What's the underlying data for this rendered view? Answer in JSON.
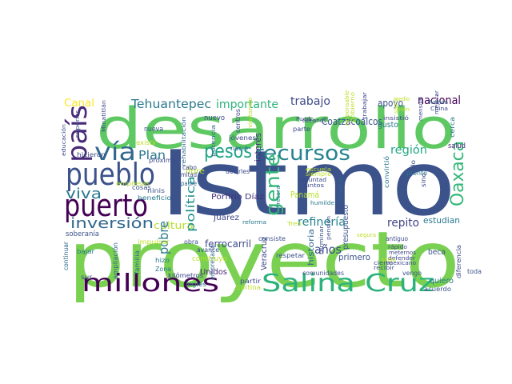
{
  "wordcloud": {
    "words": [
      {
        "text": "Istmo",
        "color": "#3b528b"
      },
      {
        "text": "proyecto",
        "color": "#7ad151"
      },
      {
        "text": "desarrollo",
        "color": "#5ec962"
      },
      {
        "text": "pueblo",
        "color": "#3b528b"
      },
      {
        "text": "puerto",
        "color": "#440154"
      },
      {
        "text": "Salina Cruz",
        "color": "#2db27d"
      },
      {
        "text": "millones",
        "color": "#440154"
      },
      {
        "text": "país",
        "color": "#482878"
      },
      {
        "text": "vía",
        "color": "#31688e"
      },
      {
        "text": "pesos",
        "color": "#20a486"
      },
      {
        "text": "recursos",
        "color": "#25848e"
      },
      {
        "text": "gente",
        "color": "#35b779"
      },
      {
        "text": "Oaxaca",
        "color": "#35b779"
      },
      {
        "text": "inversión",
        "color": "#31688e"
      },
      {
        "text": "viva",
        "color": "#2a788e"
      },
      {
        "text": "Tehuantepec",
        "color": "#2a788e"
      },
      {
        "text": "importante",
        "color": "#2db27d"
      },
      {
        "text": "trabajo",
        "color": "#3e4989"
      },
      {
        "text": "nacional",
        "color": "#440154"
      },
      {
        "text": "Canal",
        "color": "#fde725"
      },
      {
        "text": "Plan",
        "color": "#2a788e"
      },
      {
        "text": "región",
        "color": "#22a884"
      },
      {
        "text": "Coatzacoalcos",
        "color": "#3b528b"
      },
      {
        "text": "años",
        "color": "#3e4989"
      },
      {
        "text": "refinería",
        "color": "#26828e"
      },
      {
        "text": "repito",
        "color": "#414487"
      },
      {
        "text": "cultura",
        "color": "#b5de2b"
      },
      {
        "text": "pobre",
        "color": "#2a788e"
      },
      {
        "text": "política",
        "color": "#21918c"
      },
      {
        "text": "ferrocarril",
        "color": "#3e4989"
      },
      {
        "text": "estudian",
        "color": "#2a788e"
      },
      {
        "text": "apoyo",
        "color": "#3b528b"
      },
      {
        "text": "Porfirio Díaz",
        "color": "#46327e"
      },
      {
        "text": "interés",
        "color": "#472d7b"
      },
      {
        "text": "presupuesto",
        "color": "#3b528b"
      },
      {
        "text": "Panamá",
        "color": "#b5de2b"
      },
      {
        "text": "Juárez",
        "color": "#3e4989"
      },
      {
        "text": "primero",
        "color": "#3b528b"
      },
      {
        "text": "beca",
        "color": "#3b528b"
      },
      {
        "text": "quiero",
        "color": "#2a788e"
      },
      {
        "text": "Veracruz",
        "color": "#3e4989"
      },
      {
        "text": "Unidos",
        "color": "#482878"
      },
      {
        "text": "nuevo",
        "color": "#3e4989"
      },
      {
        "text": "nueva",
        "color": "#3b528b"
      },
      {
        "text": "gusto",
        "color": "#2a788e"
      },
      {
        "text": "salud",
        "color": "#482878"
      },
      {
        "text": "historia",
        "color": "#31688e"
      },
      {
        "text": "soberanía",
        "color": "#3b528b"
      },
      {
        "text": "libre",
        "color": "#b5de2b"
      },
      {
        "text": "cabo",
        "color": "#3e4989"
      },
      {
        "text": "mitad",
        "color": "#3e4989"
      },
      {
        "text": "padre",
        "color": "#31688e"
      },
      {
        "text": "consiste",
        "color": "#3b528b"
      },
      {
        "text": "decirles",
        "color": "#3e4989"
      },
      {
        "text": "empresario",
        "color": "#31688e"
      },
      {
        "text": "obra",
        "color": "#3b528b"
      },
      {
        "text": "avance",
        "color": "#3b528b"
      },
      {
        "text": "ampliación",
        "color": "#31688e"
      },
      {
        "text": "familia",
        "color": "#31688e"
      },
      {
        "text": "construyo",
        "color": "#b5de2b"
      },
      {
        "text": "kilómetros",
        "color": "#3e4989"
      },
      {
        "text": "inglés",
        "color": "#2a788e"
      },
      {
        "text": "cortina",
        "color": "#bddf26"
      },
      {
        "text": "partir",
        "color": "#3e4989"
      },
      {
        "text": "respetar",
        "color": "#3b528b"
      },
      {
        "text": "comunidades",
        "color": "#3b528b"
      },
      {
        "text": "vengo",
        "color": "#3b528b"
      },
      {
        "text": "acuerdo",
        "color": "#3b528b"
      },
      {
        "text": "toda",
        "color": "#3b528b"
      },
      {
        "text": "cerca",
        "color": "#2a788e"
      },
      {
        "text": "diferencia",
        "color": "#3e4989"
      },
      {
        "text": "continuar",
        "color": "#31688e"
      },
      {
        "text": "bajar",
        "color": "#2a788e"
      },
      {
        "text": "sur",
        "color": "#3e4989"
      },
      {
        "text": "Zona",
        "color": "#2a788e"
      },
      {
        "text": "hizo",
        "color": "#2a788e"
      },
      {
        "text": "impulsar",
        "color": "#bddf26"
      },
      {
        "text": "ninis",
        "color": "#3b528b"
      },
      {
        "text": "beneficio",
        "color": "#2a788e"
      },
      {
        "text": "cosas",
        "color": "#3b528b"
      },
      {
        "text": "empresas",
        "color": "#b5de2b"
      },
      {
        "text": "jóvenes",
        "color": "#3e4989"
      },
      {
        "text": "nació",
        "color": "#31688e"
      },
      {
        "text": "centros",
        "color": "#3e4989"
      },
      {
        "text": "parte",
        "color": "#3e4989"
      },
      {
        "text": "Puedo",
        "color": "#3e4989"
      },
      {
        "text": "hicieron",
        "color": "#3e4989"
      },
      {
        "text": "próximo",
        "color": "#3e4989"
      },
      {
        "text": "Minatitlán",
        "color": "#3e4989"
      },
      {
        "text": "rehabilitación",
        "color": "#31688e"
      },
      {
        "text": "potencia",
        "color": "#31688e"
      },
      {
        "text": "existir",
        "color": "#bddf26"
      },
      {
        "text": "reforma",
        "color": "#2a788e"
      },
      {
        "text": "siempre",
        "color": "#bddf26"
      },
      {
        "text": "voluntad",
        "color": "#3e4989"
      },
      {
        "text": "juntos",
        "color": "#3e4989"
      },
      {
        "text": "humilde",
        "color": "#2a788e"
      },
      {
        "text": "carretera",
        "color": "#2a788e"
      },
      {
        "text": "comercial",
        "color": "#31688e"
      },
      {
        "text": "escuela",
        "color": "#bddf26"
      },
      {
        "text": "convirtió",
        "color": "#2a788e"
      },
      {
        "text": "pronto",
        "color": "#2a788e"
      },
      {
        "text": "sólo",
        "color": "#3b528b"
      },
      {
        "text": "sino",
        "color": "#3e4989"
      },
      {
        "text": "pensión",
        "color": "#3b528b"
      },
      {
        "text": "terminar",
        "color": "#3b528b"
      },
      {
        "text": "cierto",
        "color": "#3e4989"
      },
      {
        "text": "recibir",
        "color": "#3e4989"
      },
      {
        "text": "antiguo",
        "color": "#3e4989"
      },
      {
        "text": "rápido",
        "color": "#3e4989"
      },
      {
        "text": "meternos",
        "color": "#3e4989"
      },
      {
        "text": "defender",
        "color": "#3e4989"
      },
      {
        "text": "mexicano",
        "color": "#3e4989"
      },
      {
        "text": "segura",
        "color": "#bddf26"
      },
      {
        "text": "Tren",
        "color": "#bddf26"
      },
      {
        "text": "bien",
        "color": "#bddf26"
      },
      {
        "text": "mejorar",
        "color": "#3e4989"
      },
      {
        "text": "mensual",
        "color": "#3e4989"
      },
      {
        "text": "China",
        "color": "#3e4989"
      },
      {
        "text": "Ramón",
        "color": "#31688e"
      },
      {
        "text": "trabajar",
        "color": "#3e4989"
      },
      {
        "text": "insistió",
        "color": "#3e4989"
      },
      {
        "text": "gobierno",
        "color": "#bddf26"
      },
      {
        "text": "responsable",
        "color": "#bddf26"
      },
      {
        "text": "océanos",
        "color": "#3e4989"
      },
      {
        "text": "visitando",
        "color": "#bddf26"
      },
      {
        "text": "santa",
        "color": "#bddf26"
      },
      {
        "text": "sismo",
        "color": "#bddf26"
      },
      {
        "text": "medio",
        "color": "#bddf26"
      },
      {
        "text": "educación",
        "color": "#3e4989"
      },
      {
        "text": "superior",
        "color": "#3e4989"
      }
    ]
  }
}
